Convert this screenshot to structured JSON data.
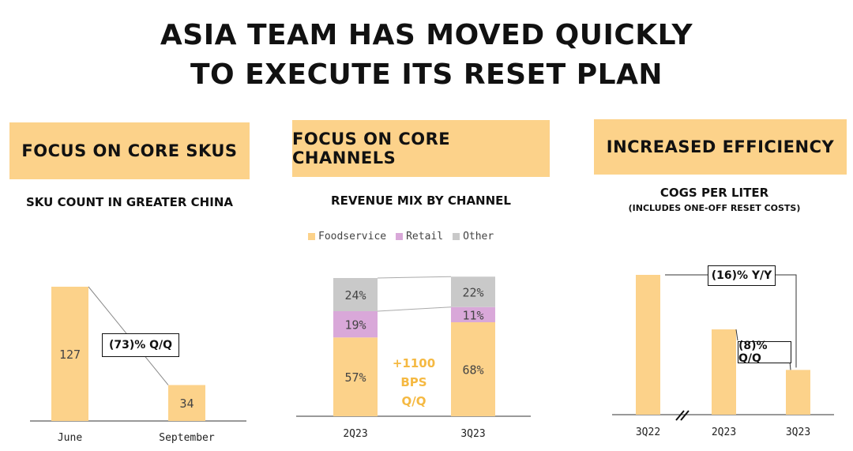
{
  "title_line1": "ASIA TEAM HAS MOVED QUICKLY",
  "title_line2": "TO EXECUTE ITS RESET PLAN",
  "panels": [
    {
      "header": "FOCUS ON CORE SKUS",
      "subtitle": "SKU COUNT IN GREATER CHINA"
    },
    {
      "header": "FOCUS ON CORE CHANNELS",
      "subtitle": "REVENUE MIX BY CHANNEL"
    },
    {
      "header": "INCREASED EFFICIENCY",
      "subtitle": "COGS PER LITER",
      "subtitle2": "(INCLUDES ONE-OFF RESET COSTS)"
    }
  ],
  "colors": {
    "foodservice": "#fcd28a",
    "retail": "#d9a8d9",
    "other": "#c9c9c9",
    "accent": "#f5b942"
  },
  "chart_data": [
    {
      "type": "bar",
      "title": "SKU COUNT IN GREATER CHINA",
      "categories": [
        "June",
        "September"
      ],
      "values": [
        127,
        34
      ],
      "data_labels": [
        "127",
        "34"
      ],
      "annotation": "(73)% Q/Q"
    },
    {
      "type": "bar",
      "stacked": true,
      "title": "REVENUE MIX BY CHANNEL",
      "categories": [
        "2Q23",
        "3Q23"
      ],
      "series": [
        {
          "name": "Foodservice",
          "values": [
            57,
            68
          ],
          "labels": [
            "57%",
            "68%"
          ]
        },
        {
          "name": "Retail",
          "values": [
            19,
            11
          ],
          "labels": [
            "19%",
            "11%"
          ]
        },
        {
          "name": "Other",
          "values": [
            24,
            22
          ],
          "labels": [
            "24%",
            "22%"
          ]
        }
      ],
      "legend": "top",
      "annotation_line1": "+1100 BPS",
      "annotation_line2": "Q/Q"
    },
    {
      "type": "bar",
      "title": "COGS PER LITER",
      "categories": [
        "3Q22",
        "2Q23",
        "3Q23"
      ],
      "values": [
        100,
        61,
        32
      ],
      "annotations": [
        "(16)% Y/Y",
        "(8)% Q/Q"
      ],
      "axis_break": true
    }
  ]
}
